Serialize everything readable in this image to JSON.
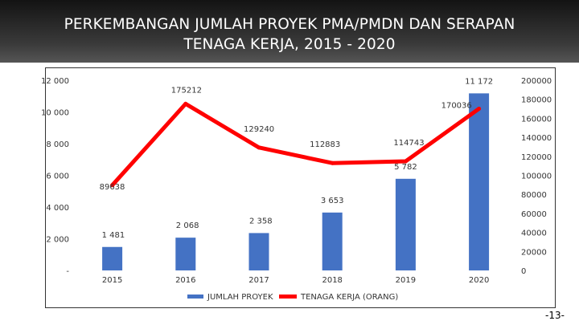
{
  "slide": {
    "title_line1": "PERKEMBANGAN JUMLAH PROYEK PMA/PMDN DAN SERAPAN",
    "title_line2": "TENAGA KERJA, 2015 - 2020",
    "page_number": "-13-"
  },
  "chart_data": {
    "type": "bar",
    "categories": [
      "2015",
      "2016",
      "2017",
      "2018",
      "2019",
      "2020"
    ],
    "series": [
      {
        "name": "JUMLAH PROYEK",
        "type": "bar",
        "axis": "left",
        "color": "#4472C4",
        "values": [
          1481,
          2068,
          2358,
          3653,
          5782,
          11172
        ],
        "labels": [
          "1 481",
          "2 068",
          "2 358",
          "3 653",
          "5 782",
          "11 172"
        ]
      },
      {
        "name": "TENAGA KERJA (ORANG)",
        "type": "line",
        "axis": "right",
        "color": "#FF0000",
        "values": [
          89638,
          175212,
          129240,
          112883,
          114743,
          170036
        ],
        "labels": [
          "89638",
          "175212",
          "129240",
          "112883",
          "114743",
          "170036"
        ]
      }
    ],
    "left_axis": {
      "ylim": [
        0,
        12000
      ],
      "ticks": [
        0,
        2000,
        4000,
        6000,
        8000,
        10000,
        12000
      ],
      "tick_labels": [
        "-",
        "2 000",
        "4 000",
        "6 000",
        "8 000",
        "10 000",
        "12 000"
      ]
    },
    "right_axis": {
      "ylim": [
        0,
        200000
      ],
      "ticks": [
        0,
        20000,
        40000,
        60000,
        80000,
        100000,
        120000,
        140000,
        160000,
        180000,
        200000
      ],
      "tick_labels": [
        "0",
        "20000",
        "40000",
        "60000",
        "80000",
        "100000",
        "120000",
        "140000",
        "160000",
        "180000",
        "200000"
      ]
    },
    "grid": false,
    "legend_position": "bottom"
  }
}
